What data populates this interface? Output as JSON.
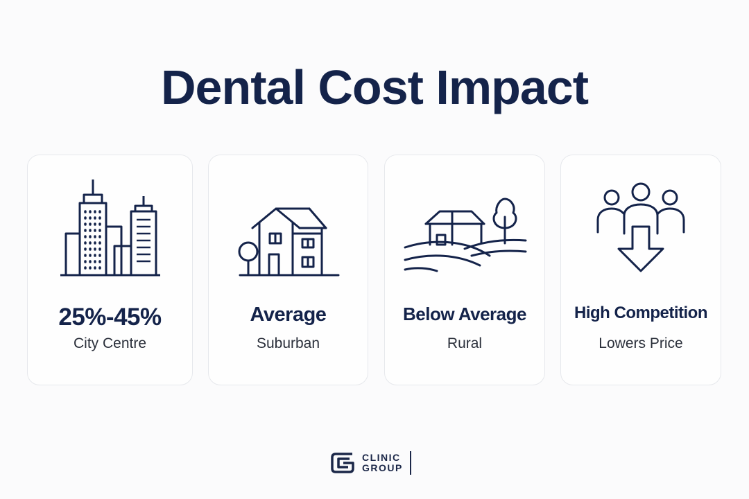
{
  "title": "Dental Cost Impact",
  "cards": [
    {
      "value": "25%-45%",
      "label": "City Centre",
      "icon": "city-buildings-icon"
    },
    {
      "value": "Average",
      "label": "Suburban",
      "icon": "house-icon"
    },
    {
      "value": "Below Average",
      "label": "Rural",
      "icon": "rural-farmhouse-icon"
    },
    {
      "value": "High Competition",
      "label": "Lowers Price",
      "icon": "people-down-arrow-icon"
    }
  ],
  "logo": {
    "line1": "CLINIC",
    "line2": "GROUP"
  },
  "colors": {
    "navy": "#14234a",
    "card_border": "#e6e8ec",
    "background": "#fbfbfc"
  }
}
